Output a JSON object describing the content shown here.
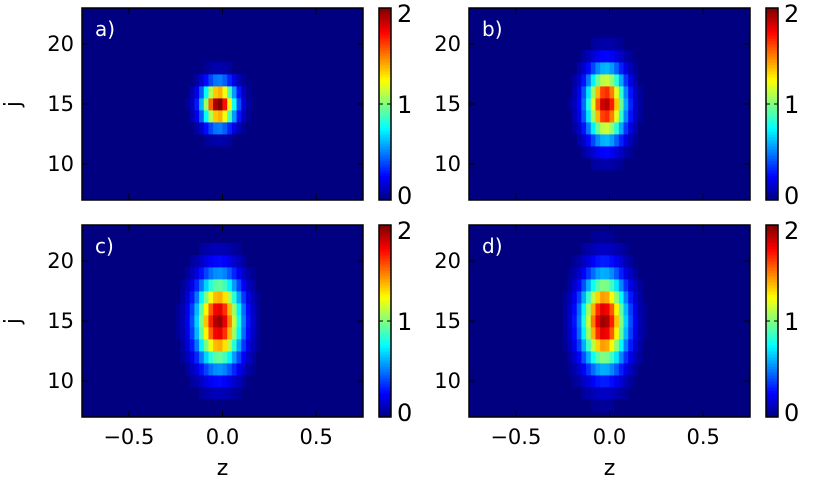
{
  "chart_data": [
    {
      "type": "heatmap",
      "panel_label": "a)",
      "xlabel": "",
      "ylabel": "j",
      "xlim": [
        -0.75,
        0.75
      ],
      "ylim": [
        7,
        23
      ],
      "xticks": [],
      "yticks": [
        "10",
        "15",
        "20"
      ],
      "colorscale": "jet",
      "clim": [
        0,
        2
      ],
      "cbar_ticks": [
        "0",
        "1",
        "2"
      ],
      "peak": {
        "z": -0.02,
        "j": 15,
        "value": 2.0
      },
      "spread": {
        "z": 0.06,
        "j": 1.2
      }
    },
    {
      "type": "heatmap",
      "panel_label": "b)",
      "xlabel": "",
      "ylabel": "",
      "xlim": [
        -0.75,
        0.75
      ],
      "ylim": [
        7,
        23
      ],
      "xticks": [],
      "yticks": [
        "10",
        "15",
        "20"
      ],
      "colorscale": "jet",
      "clim": [
        0,
        2
      ],
      "cbar_ticks": [
        "0",
        "1",
        "2"
      ],
      "peak": {
        "z": -0.02,
        "j": 15,
        "value": 1.9
      },
      "spread": {
        "z": 0.07,
        "j": 2.0
      }
    },
    {
      "type": "heatmap",
      "panel_label": "c)",
      "xlabel": "z",
      "ylabel": "j",
      "xlim": [
        -0.75,
        0.75
      ],
      "ylim": [
        7,
        23
      ],
      "xticks": [
        "−0.5",
        "0.0",
        "0.5"
      ],
      "yticks": [
        "10",
        "15",
        "20"
      ],
      "colorscale": "jet",
      "clim": [
        0,
        2
      ],
      "cbar_ticks": [
        "0",
        "1",
        "2"
      ],
      "peak": {
        "z": -0.02,
        "j": 15,
        "value": 1.95
      },
      "spread": {
        "z": 0.08,
        "j": 2.5
      }
    },
    {
      "type": "heatmap",
      "panel_label": "d)",
      "xlabel": "z",
      "ylabel": "",
      "xlim": [
        -0.75,
        0.75
      ],
      "ylim": [
        7,
        23
      ],
      "xticks": [
        "−0.5",
        "0.0",
        "0.5"
      ],
      "yticks": [
        "10",
        "15",
        "20"
      ],
      "colorscale": "jet",
      "clim": [
        0,
        2
      ],
      "cbar_ticks": [
        "0",
        "1",
        "2"
      ],
      "peak": {
        "z": -0.03,
        "j": 15,
        "value": 1.95
      },
      "spread": {
        "z": 0.08,
        "j": 2.6
      }
    }
  ]
}
